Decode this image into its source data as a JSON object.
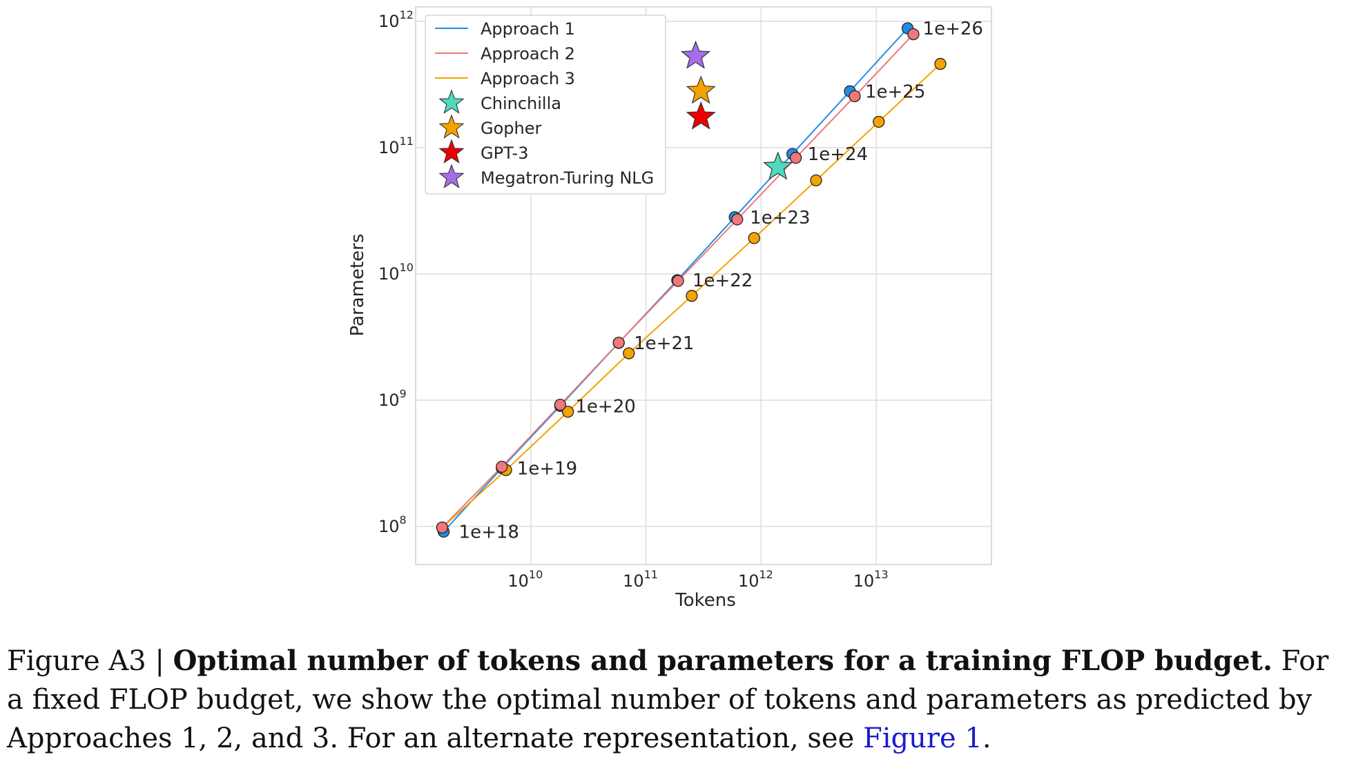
{
  "caption": {
    "label": "Figure A3 | ",
    "title": "Optimal number of tokens and parameters for a training FLOP budget.",
    "text": " For a fixed FLOP budget, we show the optimal number of tokens and parameters as predicted by Approaches 1, 2, and 3. For an alternate representation, see ",
    "link": "Figure 1",
    "end": "."
  },
  "chart_data": {
    "type": "scatter",
    "title": "",
    "xlabel": "Tokens",
    "ylabel": "Parameters",
    "xscale": "log",
    "yscale": "log",
    "xlim": [
      1000000000.0,
      100000000000000.0
    ],
    "ylim": [
      50000000.0,
      1300000000000.0
    ],
    "xticks": [
      {
        "value": 10000000000.0,
        "base": "10",
        "exp": "10"
      },
      {
        "value": 100000000000.0,
        "base": "10",
        "exp": "11"
      },
      {
        "value": 1000000000000.0,
        "base": "10",
        "exp": "12"
      },
      {
        "value": 10000000000000.0,
        "base": "10",
        "exp": "13"
      }
    ],
    "yticks": [
      {
        "value": 100000000.0,
        "base": "10",
        "exp": "8"
      },
      {
        "value": 1000000000.0,
        "base": "10",
        "exp": "9"
      },
      {
        "value": 10000000000.0,
        "base": "10",
        "exp": "10"
      },
      {
        "value": 100000000000.0,
        "base": "10",
        "exp": "11"
      },
      {
        "value": 1000000000000.0,
        "base": "10",
        "exp": "12"
      }
    ],
    "grid": true,
    "legend_position": "top-left",
    "series": [
      {
        "name": "Approach 1",
        "color": "#1f8ee8",
        "x": [
          1750000000.0,
          5600000000.0,
          18000000000.0,
          58000000000.0,
          187000000000.0,
          590000000000.0,
          1870000000000.0,
          5900000000000.0,
          18700000000000.0
        ],
        "y": [
          91000000.0,
          290000000.0,
          900000000.0,
          2840000000.0,
          8900000000.0,
          28100000000.0,
          89000000000.0,
          279000000000.0,
          880000000000.0
        ]
      },
      {
        "name": "Approach 2",
        "color": "#f07878",
        "x": [
          1700000000.0,
          5600000000.0,
          18000000000.0,
          58000000000.0,
          190000000000.0,
          620000000000.0,
          2000000000000.0,
          6500000000000.0,
          21000000000000.0
        ],
        "y": [
          98000000.0,
          297000000.0,
          920000000.0,
          2850000000.0,
          8800000000.0,
          27000000000.0,
          83000000000.0,
          255000000000.0,
          790000000000.0
        ]
      },
      {
        "name": "Approach 3",
        "color": "#f5a200",
        "x": [
          1700000000.0,
          6100000000.0,
          21000000000.0,
          71000000000.0,
          250000000000.0,
          870000000000.0,
          3000000000000.0,
          10500000000000.0,
          36000000000000.0
        ],
        "y": [
          98000000.0,
          280000000.0,
          810000000.0,
          2350000000.0,
          6700000000.0,
          19200000000.0,
          55000000000.0,
          160000000000.0,
          460000000000.0
        ]
      }
    ],
    "models": [
      {
        "name": "Chinchilla",
        "color": "#4fd9bd",
        "x": 1400000000000.0,
        "y": 70000000000.0
      },
      {
        "name": "Gopher",
        "color": "#f5a200",
        "x": 300000000000.0,
        "y": 280000000000.0
      },
      {
        "name": "GPT-3",
        "color": "#ee0000",
        "x": 300000000000.0,
        "y": 175000000000.0
      },
      {
        "name": "Megatron-Turing NLG",
        "color": "#a66de8",
        "x": 270000000000.0,
        "y": 530000000000.0
      }
    ],
    "flop_labels": [
      {
        "text": "1e+18",
        "x": 1750000000.0,
        "y": 91000000.0
      },
      {
        "text": "1e+19",
        "x": 5600000000.0,
        "y": 290000000.0
      },
      {
        "text": "1e+20",
        "x": 18000000000.0,
        "y": 900000000.0
      },
      {
        "text": "1e+21",
        "x": 58000000000.0,
        "y": 2840000000.0
      },
      {
        "text": "1e+22",
        "x": 187000000000.0,
        "y": 8900000000.0
      },
      {
        "text": "1e+23",
        "x": 590000000000.0,
        "y": 28100000000.0
      },
      {
        "text": "1e+24",
        "x": 1870000000000.0,
        "y": 89000000000.0
      },
      {
        "text": "1e+25",
        "x": 5900000000000.0,
        "y": 279000000000.0
      },
      {
        "text": "1e+26",
        "x": 18700000000000.0,
        "y": 880000000000.0
      }
    ]
  }
}
